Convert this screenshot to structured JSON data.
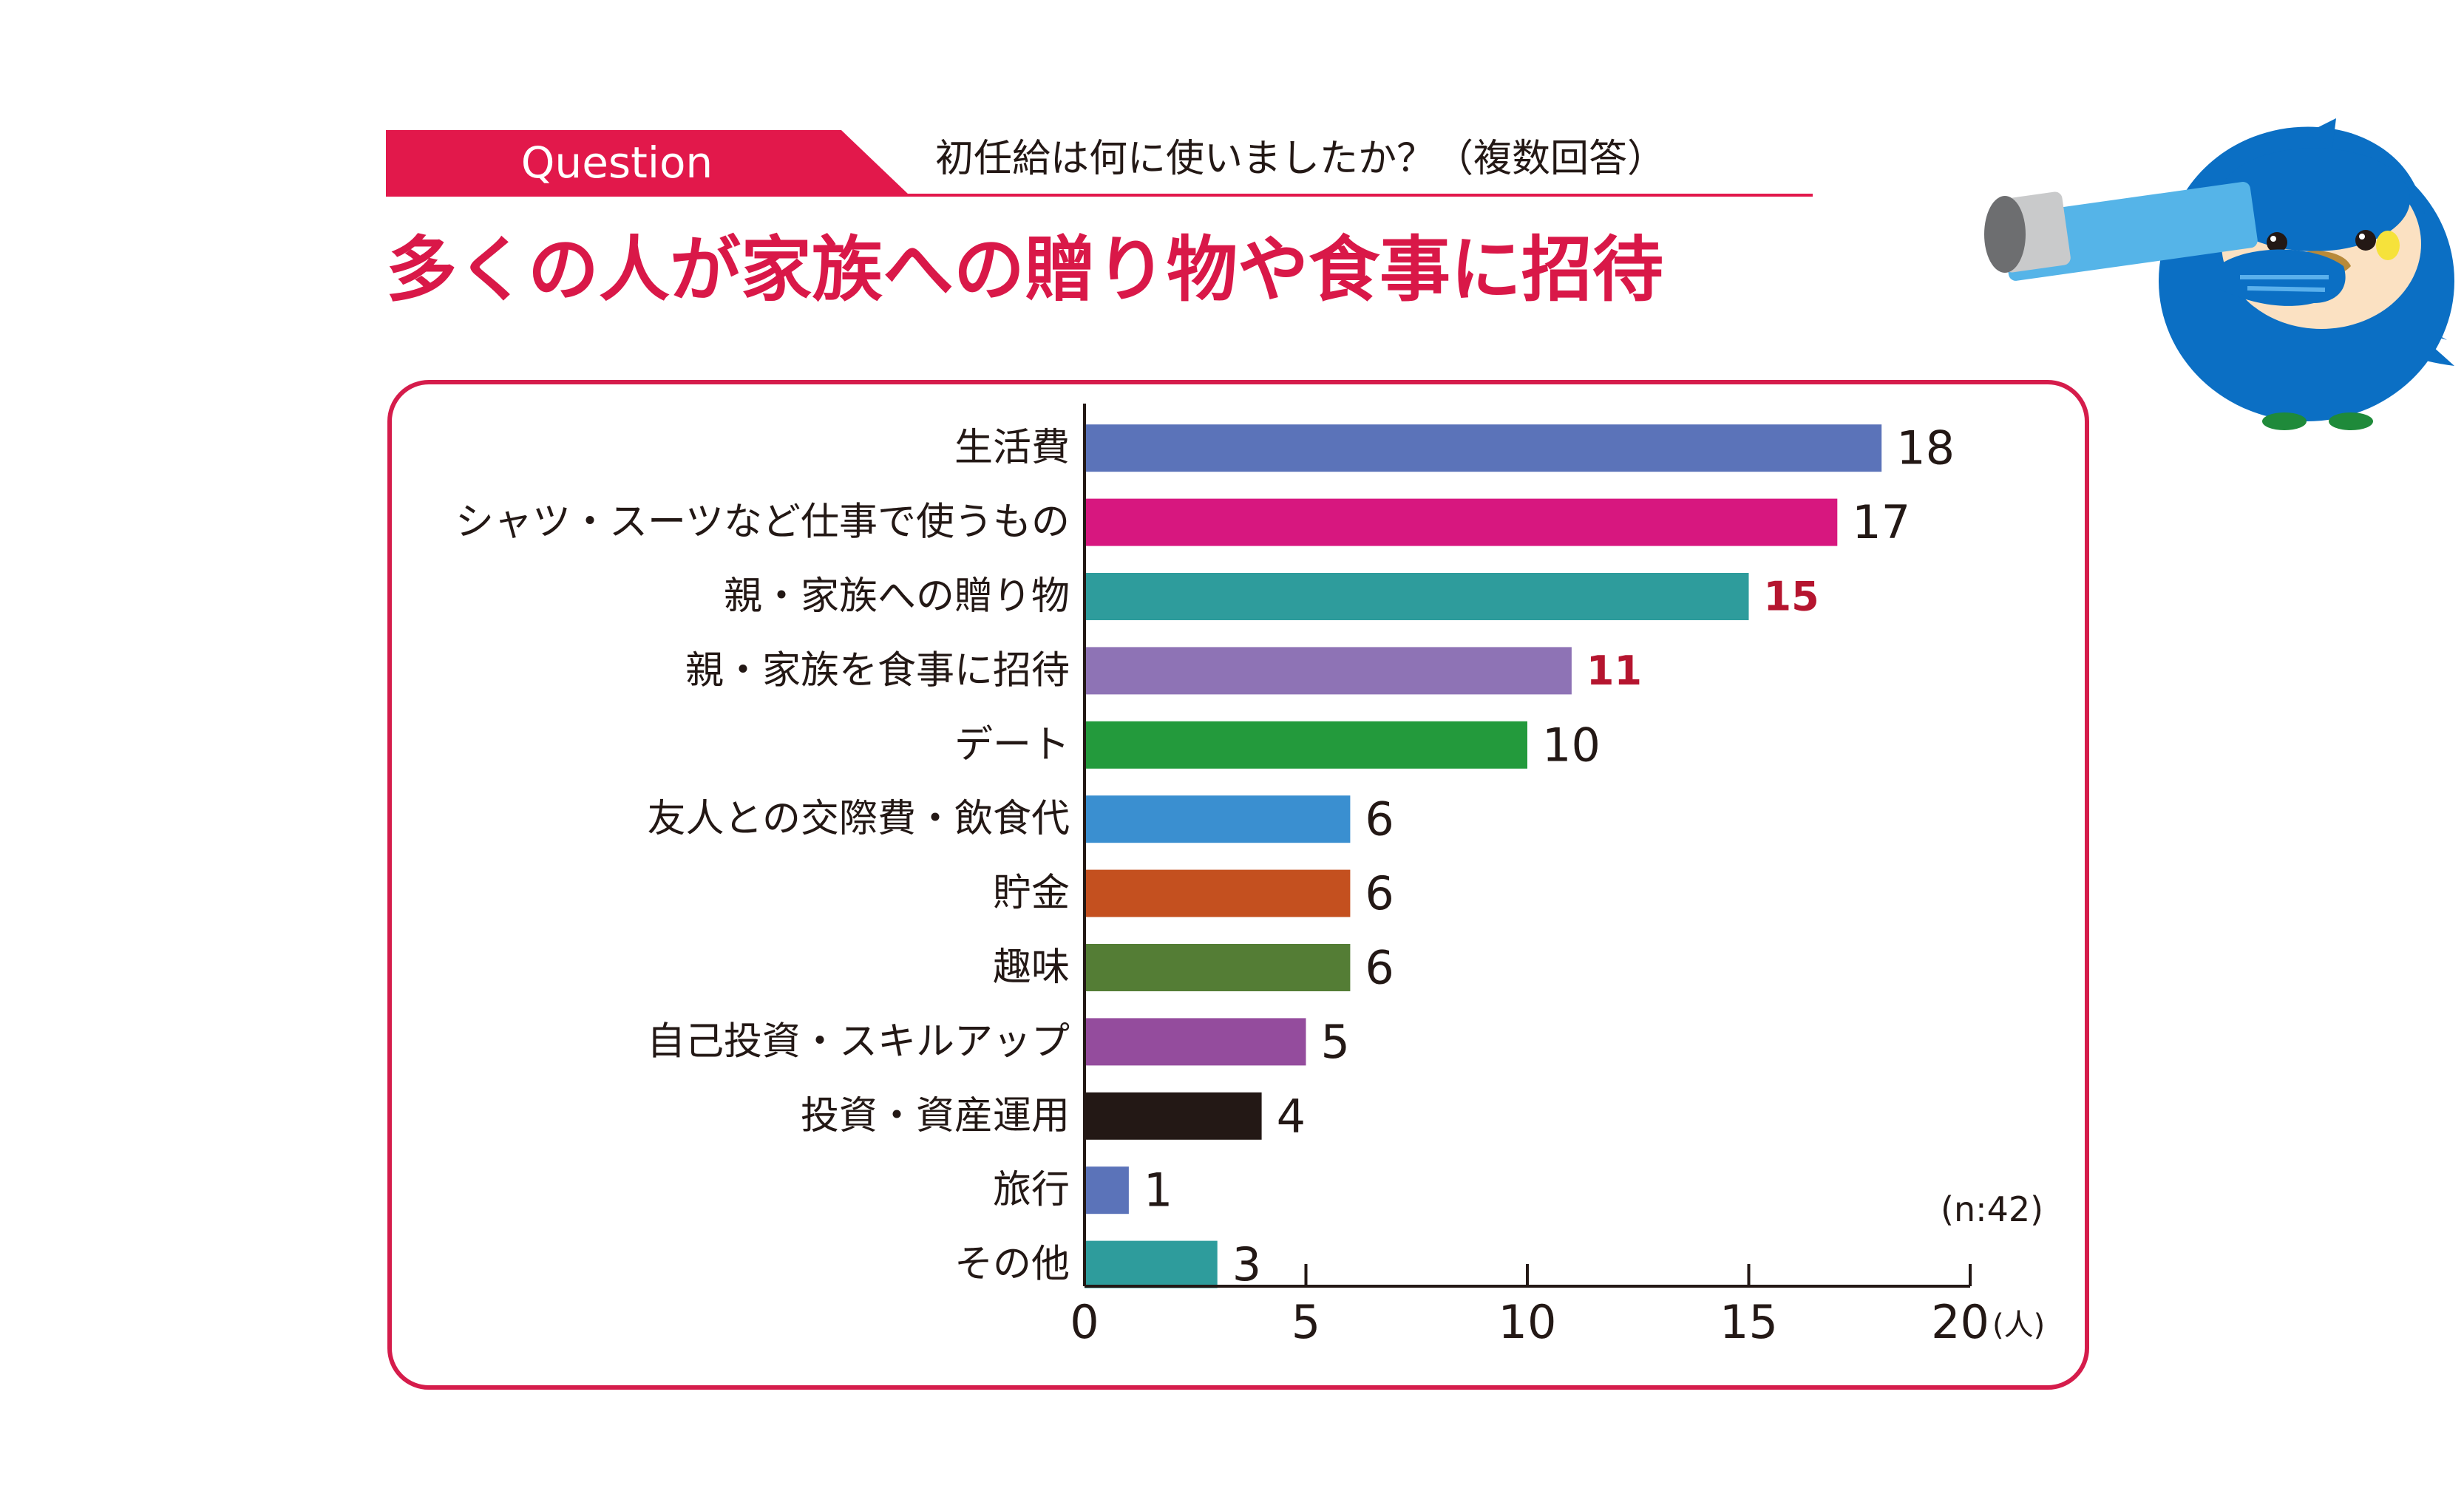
{
  "header": {
    "badge_label": "Question",
    "question": "初任給は何に使いましたか？（複数回答）",
    "headline": "多くの人が家族への贈り物や食事に招待"
  },
  "note": "(n:42)",
  "colors": {
    "accent": "#e2184b",
    "headline": "#d91848",
    "highlight_value": "#b5152f"
  },
  "chart_data": {
    "type": "bar",
    "orientation": "horizontal",
    "categories": [
      "生活費",
      "シャツ・スーツなど仕事で使うもの",
      "親・家族への贈り物",
      "親・家族を食事に招待",
      "デート",
      "友人との交際費・飲食代",
      "貯金",
      "趣味",
      "自己投資・スキルアップ",
      "投資・資産運用",
      "旅行",
      "その他"
    ],
    "values": [
      18,
      17,
      15,
      11,
      10,
      6,
      6,
      6,
      5,
      4,
      1,
      3
    ],
    "bar_colors": [
      "#5b73b9",
      "#d7177f",
      "#2e9c9c",
      "#8e73b5",
      "#239a3c",
      "#3a8fd0",
      "#c4501f",
      "#547d35",
      "#944c9d",
      "#231815",
      "#5b73b9",
      "#2e9c9c"
    ],
    "highlighted": [
      false,
      false,
      true,
      true,
      false,
      false,
      false,
      false,
      false,
      false,
      false,
      false
    ],
    "xlim": [
      0,
      20
    ],
    "xticks": [
      0,
      5,
      10,
      15,
      20
    ],
    "x_unit": "(人)",
    "grid": false
  }
}
